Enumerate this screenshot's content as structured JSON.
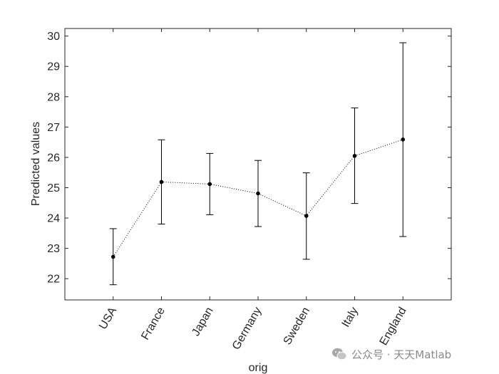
{
  "chart_data": {
    "type": "line",
    "title": "",
    "xlabel": "orig",
    "ylabel": "Predicted values",
    "categories": [
      "USA",
      "France",
      "Japan",
      "Germany",
      "Sweden",
      "Italy",
      "England"
    ],
    "series": [
      {
        "values": [
          22.72,
          25.19,
          25.12,
          24.81,
          24.07,
          26.05,
          26.59
        ],
        "lower": [
          21.8,
          23.8,
          24.11,
          23.72,
          22.64,
          24.48,
          23.39
        ],
        "upper": [
          23.65,
          26.58,
          26.13,
          25.9,
          25.49,
          27.63,
          29.78
        ]
      }
    ],
    "ylim": [
      21.3,
      30.25
    ],
    "yticks": [
      22,
      23,
      24,
      25,
      26,
      27,
      28,
      29,
      30
    ],
    "line_style": "dotted",
    "grid": false,
    "colors": {
      "line": "#000000",
      "axes": "#262626",
      "text": "#262626",
      "watermark": "#8a8a8a"
    }
  },
  "watermark": {
    "text": "公众号 · 天天Matlab",
    "icon": "wechat-icon"
  }
}
